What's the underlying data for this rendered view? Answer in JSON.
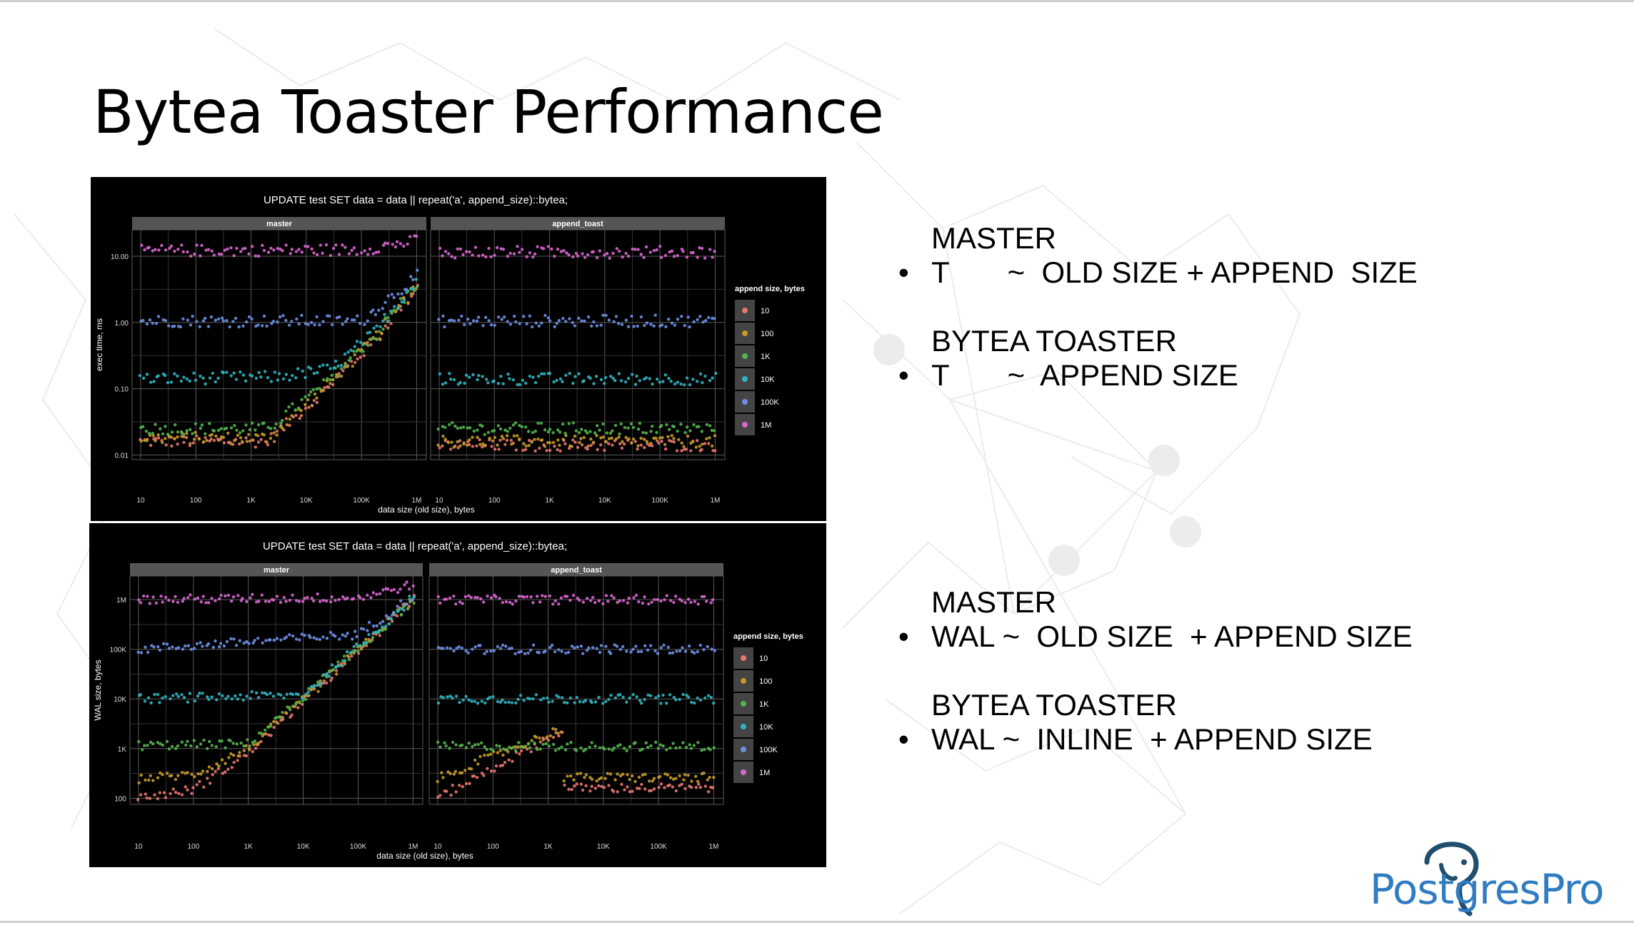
{
  "slide": {
    "title": "Bytea Toaster Performance",
    "logo_text": "PostgresPro",
    "logo_icon": "elephant-icon"
  },
  "bullets": [
    {
      "heading": "MASTER",
      "bullet": "•",
      "text": "T       ~  OLD SIZE + APPEND  SIZE"
    },
    {
      "heading": "BYTEA TOASTER",
      "bullet": "•",
      "text": "T       ~  APPEND SIZE"
    },
    {
      "heading": "MASTER",
      "bullet": "•",
      "text": "WAL ~  OLD SIZE  + APPEND SIZE"
    },
    {
      "heading": "BYTEA TOASTER",
      "bullet": "•",
      "text": "WAL ~  INLINE  + APPEND SIZE"
    }
  ],
  "colors": {
    "10": "#e8766d",
    "100": "#c49a2a",
    "1K": "#53b44f",
    "10K": "#2fb4c0",
    "100K": "#6f8fe6",
    "1M": "#d866cf",
    "panel_bg": "#000000",
    "strip_bg": "#555555",
    "grid": "#5a5a5a",
    "logo": "#2f7cc0"
  },
  "chart_data": [
    {
      "type": "scatter",
      "title": "UPDATE test SET data = data || repeat('a', append_size)::bytea;",
      "xlabel": "data size (old size), bytes",
      "ylabel": "exec time, ms",
      "x_scale": "log",
      "y_scale": "log",
      "xlim": [
        7,
        1500000
      ],
      "ylim": [
        0.0085,
        25
      ],
      "x_ticks": [
        "10",
        "100",
        "1K",
        "10K",
        "100K",
        "1M"
      ],
      "y_ticks": [
        "0.01",
        "0.10",
        "1.00",
        "10.00"
      ],
      "grid": true,
      "legend_title": "append size, bytes",
      "legend_position": "right",
      "legend_entries": [
        "10",
        "100",
        "1K",
        "10K",
        "100K",
        "1M"
      ],
      "facets": [
        "master",
        "append_toast"
      ],
      "series": [
        {
          "name": "10",
          "master_levels": [
            [
              10,
              0.016
            ],
            [
              2000,
              0.016
            ],
            [
              20000,
              0.09
            ],
            [
              200000,
              0.6
            ],
            [
              1000000,
              3.5
            ]
          ],
          "append_toast_levels": [
            [
              10,
              0.014
            ],
            [
              1000000,
              0.014
            ]
          ]
        },
        {
          "name": "100",
          "master_levels": [
            [
              10,
              0.018
            ],
            [
              2000,
              0.018
            ],
            [
              20000,
              0.095
            ],
            [
              200000,
              0.65
            ],
            [
              1000000,
              3.7
            ]
          ],
          "append_toast_levels": [
            [
              10,
              0.016
            ],
            [
              1000000,
              0.016
            ]
          ]
        },
        {
          "name": "1K",
          "master_levels": [
            [
              10,
              0.025
            ],
            [
              2000,
              0.025
            ],
            [
              20000,
              0.11
            ],
            [
              200000,
              0.7
            ],
            [
              1000000,
              4.0
            ]
          ],
          "append_toast_levels": [
            [
              10,
              0.025
            ],
            [
              1000000,
              0.025
            ]
          ]
        },
        {
          "name": "10K",
          "master_levels": [
            [
              10,
              0.14
            ],
            [
              3000,
              0.15
            ],
            [
              30000,
              0.2
            ],
            [
              200000,
              0.8
            ],
            [
              1000000,
              4.5
            ]
          ],
          "append_toast_levels": [
            [
              10,
              0.14
            ],
            [
              1000000,
              0.14
            ]
          ]
        },
        {
          "name": "100K",
          "master_levels": [
            [
              10,
              1.05
            ],
            [
              100000,
              1.05
            ],
            [
              1000000,
              5.0
            ]
          ],
          "append_toast_levels": [
            [
              10,
              1.05
            ],
            [
              1000000,
              1.05
            ]
          ]
        },
        {
          "name": "1M",
          "master_levels": [
            [
              10,
              12
            ],
            [
              100000,
              12.5
            ],
            [
              1000000,
              17
            ]
          ],
          "append_toast_levels": [
            [
              10,
              11.5
            ],
            [
              1000000,
              11.5
            ]
          ]
        }
      ]
    },
    {
      "type": "scatter",
      "title": "UPDATE test SET data = data || repeat('a', append_size)::bytea;",
      "xlabel": "data size (old size), bytes",
      "ylabel": "WAL size, bytes",
      "x_scale": "log",
      "y_scale": "log",
      "xlim": [
        7,
        1500000
      ],
      "ylim": [
        75,
        3000000
      ],
      "x_ticks": [
        "10",
        "100",
        "1K",
        "10K",
        "100K",
        "1M"
      ],
      "y_ticks": [
        "100",
        "1K",
        "10K",
        "100K",
        "1M"
      ],
      "grid": true,
      "legend_title": "append size, bytes",
      "legend_position": "right",
      "legend_entries": [
        "10",
        "100",
        "1K",
        "10K",
        "100K",
        "1M"
      ],
      "facets": [
        "master",
        "append_toast"
      ],
      "series": [
        {
          "name": "10",
          "master_levels": [
            [
              10,
              100
            ],
            [
              100,
              150
            ],
            [
              1000,
              800
            ],
            [
              10000,
              9000
            ],
            [
              100000,
              90000
            ],
            [
              1000000,
              1000000
            ]
          ],
          "append_toast_levels": [
            [
              10,
              100
            ],
            [
              2000,
              2500
            ],
            [
              2001,
              160
            ],
            [
              1000000,
              160
            ]
          ]
        },
        {
          "name": "100",
          "master_levels": [
            [
              10,
              250
            ],
            [
              100,
              300
            ],
            [
              1000,
              1000
            ],
            [
              10000,
              9500
            ],
            [
              100000,
              95000
            ],
            [
              1000000,
              1000000
            ]
          ],
          "append_toast_levels": [
            [
              10,
              250
            ],
            [
              2000,
              2700
            ],
            [
              2001,
              260
            ],
            [
              1000000,
              260
            ]
          ]
        },
        {
          "name": "1K",
          "master_levels": [
            [
              10,
              1150
            ],
            [
              1000,
              1250
            ],
            [
              10000,
              11000
            ],
            [
              100000,
              100000
            ],
            [
              1000000,
              1000000
            ]
          ],
          "append_toast_levels": [
            [
              10,
              1100
            ],
            [
              1000000,
              1100
            ]
          ]
        },
        {
          "name": "10K",
          "master_levels": [
            [
              10,
              10000
            ],
            [
              10000,
              12000
            ],
            [
              100000,
              110000
            ],
            [
              1000000,
              1100000
            ]
          ],
          "append_toast_levels": [
            [
              10,
              10000
            ],
            [
              1000000,
              10000
            ]
          ]
        },
        {
          "name": "100K",
          "master_levels": [
            [
              10,
              100000
            ],
            [
              100000,
              200000
            ],
            [
              1000000,
              1200000
            ]
          ],
          "append_toast_levels": [
            [
              10,
              100000
            ],
            [
              1000000,
              100000
            ]
          ]
        },
        {
          "name": "1M",
          "master_levels": [
            [
              10,
              1000000
            ],
            [
              100000,
              1100000
            ],
            [
              1000000,
              2000000
            ]
          ],
          "append_toast_levels": [
            [
              10,
              1000000
            ],
            [
              1000000,
              1000000
            ]
          ]
        }
      ]
    }
  ]
}
